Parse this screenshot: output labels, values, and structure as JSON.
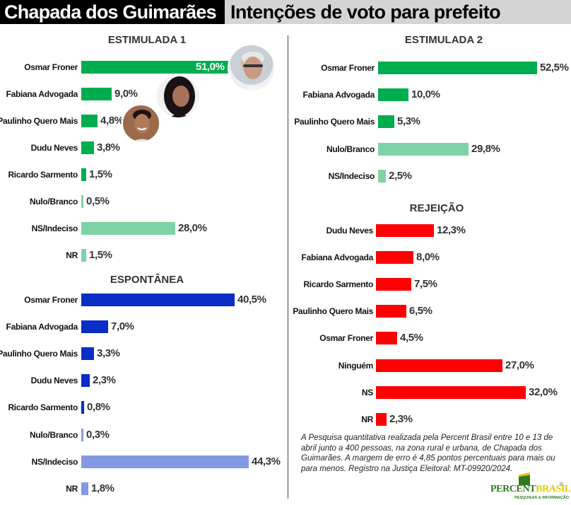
{
  "header": {
    "city": "Chapada dos Guimarães",
    "title": "Intenções de voto para prefeito"
  },
  "colors": {
    "green": "#00ad4e",
    "green_light": "#7dd3a5",
    "blue": "#0a2dc6",
    "blue_light": "#8499e3",
    "red": "#ff0000"
  },
  "sections": {
    "estimulada1": {
      "title": "ESTIMULADA 1",
      "rows": [
        {
          "label": "Osmar Froner",
          "value": "51,0%"
        },
        {
          "label": "Fabiana Advogada",
          "value": "9,0%"
        },
        {
          "label": "Paulinho Quero Mais",
          "value": "4,8%"
        },
        {
          "label": "Dudu Neves",
          "value": "3,8%"
        },
        {
          "label": "Ricardo Sarmento",
          "value": "1,5%"
        },
        {
          "label": "Nulo/Branco",
          "value": "0,5%"
        },
        {
          "label": "NS/Indeciso",
          "value": "28,0%"
        },
        {
          "label": "NR",
          "value": "1,5%"
        }
      ]
    },
    "espontanea": {
      "title": "ESPONTÂNEA",
      "rows": [
        {
          "label": "Osmar Froner",
          "value": "40,5%"
        },
        {
          "label": "Fabiana Advogada",
          "value": "7,0%"
        },
        {
          "label": "Paulinho Quero Mais",
          "value": "3,3%"
        },
        {
          "label": "Dudu Neves",
          "value": "2,3%"
        },
        {
          "label": "Ricardo Sarmento",
          "value": "0,8%"
        },
        {
          "label": "Nulo/Branco",
          "value": "0,3%"
        },
        {
          "label": "NS/Indeciso",
          "value": "44,3%"
        },
        {
          "label": "NR",
          "value": "1,8%"
        }
      ]
    },
    "estimulada2": {
      "title": "ESTIMULADA 2",
      "rows": [
        {
          "label": "Osmar Froner",
          "value": "52,5%"
        },
        {
          "label": "Fabiana Advogada",
          "value": "10,0%"
        },
        {
          "label": "Paulinho Quero Mais",
          "value": "5,3%"
        },
        {
          "label": "Nulo/Branco",
          "value": "29,8%"
        },
        {
          "label": "NS/Indeciso",
          "value": "2,5%"
        }
      ]
    },
    "rejeicao": {
      "title": "REJEIÇÃO",
      "rows": [
        {
          "label": "Dudu Neves",
          "value": "12,3%"
        },
        {
          "label": "Fabiana Advogada",
          "value": "8,0%"
        },
        {
          "label": "Ricardo Sarmento",
          "value": "7,5%"
        },
        {
          "label": "Paulinho Quero Mais",
          "value": "6,5%"
        },
        {
          "label": "Osmar Froner",
          "value": "4,5%"
        },
        {
          "label": "Ninguém",
          "value": "27,0%"
        },
        {
          "label": "NS",
          "value": "32,0%"
        },
        {
          "label": "NR",
          "value": "2,3%"
        }
      ]
    }
  },
  "footnote": "A Pesquisa quantitativa realizada pela Percent Brasil entre 10 e 13 de abril junto a 400 pessoas, na zona rural e urbana, de Chapada dos Guimarães. A margem de erro é 4,85 pontos percentuais para mais ou para menos. Registro na Justiça Eleitoral: MT-09920/2024.",
  "logo": {
    "part1": "PERCENT",
    "part2": "BRASIL",
    "registered": "®",
    "subtitle": "PESQUISAS & INFORMAÇÃO"
  },
  "chart_data": [
    {
      "type": "bar",
      "orientation": "horizontal",
      "title": "ESTIMULADA 1",
      "categories": [
        "Osmar Froner",
        "Fabiana Advogada",
        "Paulinho Quero Mais",
        "Dudu Neves",
        "Ricardo Sarmento",
        "Nulo/Branco",
        "NS/Indeciso",
        "NR"
      ],
      "values": [
        51.0,
        9.0,
        4.8,
        3.8,
        1.5,
        0.5,
        28.0,
        1.5
      ],
      "unit": "%",
      "grid": false
    },
    {
      "type": "bar",
      "orientation": "horizontal",
      "title": "ESPONTÂNEA",
      "categories": [
        "Osmar Froner",
        "Fabiana Advogada",
        "Paulinho Quero Mais",
        "Dudu Neves",
        "Ricardo Sarmento",
        "Nulo/Branco",
        "NS/Indeciso",
        "NR"
      ],
      "values": [
        40.5,
        7.0,
        3.3,
        2.3,
        0.8,
        0.3,
        44.3,
        1.8
      ],
      "unit": "%",
      "grid": false
    },
    {
      "type": "bar",
      "orientation": "horizontal",
      "title": "ESTIMULADA 2",
      "categories": [
        "Osmar Froner",
        "Fabiana Advogada",
        "Paulinho Quero Mais",
        "Nulo/Branco",
        "NS/Indeciso"
      ],
      "values": [
        52.5,
        10.0,
        5.3,
        29.8,
        2.5
      ],
      "unit": "%",
      "grid": false
    },
    {
      "type": "bar",
      "orientation": "horizontal",
      "title": "REJEIÇÃO",
      "categories": [
        "Dudu Neves",
        "Fabiana Advogada",
        "Ricardo Sarmento",
        "Paulinho Quero Mais",
        "Osmar Froner",
        "Ninguém",
        "NS",
        "NR"
      ],
      "values": [
        12.3,
        8.0,
        7.5,
        6.5,
        4.5,
        27.0,
        32.0,
        2.3
      ],
      "unit": "%",
      "grid": false
    }
  ]
}
